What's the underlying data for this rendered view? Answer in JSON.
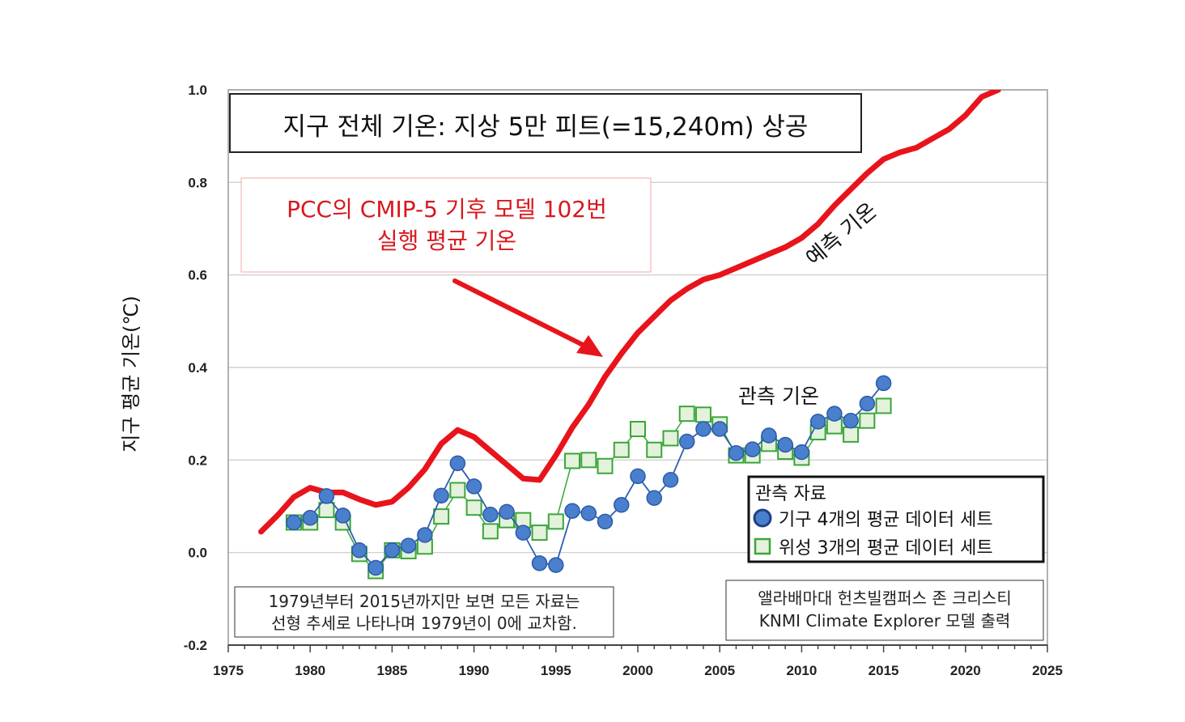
{
  "chart_data": {
    "type": "line",
    "title": "지구 전체 기온: 지상 5만 피트(=15,240m) 상공",
    "xlabel": "",
    "ylabel": "지구 평균 기온(℃)",
    "xlim": [
      1975,
      2025
    ],
    "ylim": [
      -0.2,
      1.0
    ],
    "x_ticks": [
      "1975",
      "1980",
      "1985",
      "1990",
      "1995",
      "2000",
      "2005",
      "2010",
      "2015",
      "2020",
      "2025"
    ],
    "y_ticks": [
      "1.0",
      "0.8",
      "0.6",
      "0.4",
      "0.2",
      "0.0",
      "-0.2"
    ],
    "grid": true,
    "series": [
      {
        "name": "예측 기온",
        "color": "#e8141c",
        "style": "thick-line",
        "x": [
          1977,
          1978,
          1979,
          1980,
          1981,
          1982,
          1983,
          1984,
          1985,
          1986,
          1987,
          1988,
          1989,
          1990,
          1991,
          1992,
          1993,
          1994,
          1995,
          1996,
          1997,
          1998,
          1999,
          2000,
          2001,
          2002,
          2003,
          2004,
          2005,
          2006,
          2007,
          2008,
          2009,
          2010,
          2011,
          2012,
          2013,
          2014,
          2015,
          2016,
          2017,
          2018,
          2019,
          2020,
          2021,
          2022
        ],
        "values": [
          0.045,
          0.08,
          0.12,
          0.14,
          0.13,
          0.13,
          0.115,
          0.103,
          0.11,
          0.14,
          0.18,
          0.235,
          0.265,
          0.25,
          0.22,
          0.19,
          0.16,
          0.157,
          0.21,
          0.27,
          0.32,
          0.38,
          0.43,
          0.475,
          0.51,
          0.545,
          0.57,
          0.59,
          0.6,
          0.615,
          0.63,
          0.645,
          0.66,
          0.68,
          0.71,
          0.75,
          0.785,
          0.82,
          0.85,
          0.865,
          0.875,
          0.895,
          0.915,
          0.945,
          0.985,
          1.0
        ]
      },
      {
        "name": "기구 4개의 평균 데이터 세트",
        "color": "#4a7fcd",
        "marker": "circle",
        "x": [
          1979,
          1980,
          1981,
          1982,
          1983,
          1984,
          1985,
          1986,
          1987,
          1988,
          1989,
          1990,
          1991,
          1992,
          1993,
          1994,
          1995,
          1996,
          1997,
          1998,
          1999,
          2000,
          2001,
          2002,
          2003,
          2004,
          2005,
          2006,
          2007,
          2008,
          2009,
          2010,
          2011,
          2012,
          2013,
          2014,
          2015
        ],
        "values": [
          0.065,
          0.075,
          0.122,
          0.08,
          0.005,
          -0.033,
          0.005,
          0.015,
          0.038,
          0.123,
          0.193,
          0.143,
          0.082,
          0.088,
          0.043,
          -0.023,
          -0.027,
          0.09,
          0.085,
          0.067,
          0.103,
          0.165,
          0.118,
          0.157,
          0.24,
          0.267,
          0.267,
          0.215,
          0.223,
          0.253,
          0.233,
          0.217,
          0.283,
          0.3,
          0.285,
          0.322,
          0.366
        ]
      },
      {
        "name": "위성 3개의 평균 데이터 세트",
        "color": "#3aa63a",
        "marker": "square",
        "x": [
          1979,
          1980,
          1981,
          1982,
          1983,
          1984,
          1985,
          1986,
          1987,
          1988,
          1989,
          1990,
          1991,
          1992,
          1993,
          1994,
          1995,
          1996,
          1997,
          1998,
          1999,
          2000,
          2001,
          2002,
          2003,
          2004,
          2005,
          2006,
          2007,
          2008,
          2009,
          2010,
          2011,
          2012,
          2013,
          2014,
          2015
        ],
        "values": [
          0.065,
          0.065,
          0.092,
          0.065,
          -0.003,
          -0.04,
          0.005,
          0.003,
          0.013,
          0.078,
          0.135,
          0.097,
          0.046,
          0.07,
          0.07,
          0.043,
          0.067,
          0.198,
          0.2,
          0.187,
          0.222,
          0.267,
          0.222,
          0.247,
          0.3,
          0.298,
          0.277,
          0.21,
          0.21,
          0.235,
          0.218,
          0.205,
          0.26,
          0.273,
          0.255,
          0.285,
          0.317
        ]
      }
    ],
    "annotations": {
      "model_label_line1": "PCC의 CMIP-5 기후 모델 102번",
      "model_label_line2": "실행 평균 기온",
      "forecast_label": "예측 기온",
      "observed_label": "관측 기온",
      "note_line1": "1979년부터 2015년까지만 보면 모든 자료는",
      "note_line2": "선형 추세로 나타나며 1979년이 0에 교차함.",
      "credit_line1": "앨라배마대 헌츠빌캠퍼스 존 크리스티",
      "credit_line2": "KNMI Climate Explorer 모델 출력"
    },
    "legend": {
      "title": "관측 자료",
      "position": "bottom-right"
    }
  }
}
